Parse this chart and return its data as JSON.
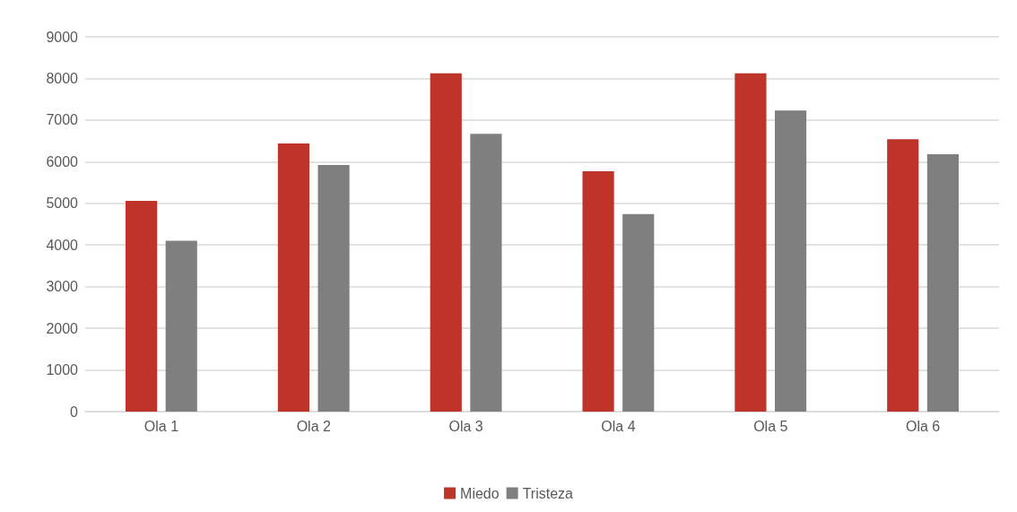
{
  "chart_data": {
    "type": "bar",
    "categories": [
      "Ola 1",
      "Ola 2",
      "Ola 3",
      "Ola 4",
      "Ola 5",
      "Ola 6"
    ],
    "series": [
      {
        "name": "Miedo",
        "color": "#be3428",
        "values": [
          5060,
          6440,
          8120,
          5770,
          8120,
          6540
        ]
      },
      {
        "name": "Tristeza",
        "color": "#7f7f7f",
        "values": [
          4100,
          5920,
          6670,
          4740,
          7230,
          6180
        ]
      }
    ],
    "ylim": [
      0,
      9000
    ],
    "yticks": [
      0,
      1000,
      2000,
      3000,
      4000,
      5000,
      6000,
      7000,
      8000,
      9000
    ],
    "grid": "y",
    "legend": "bottom"
  }
}
